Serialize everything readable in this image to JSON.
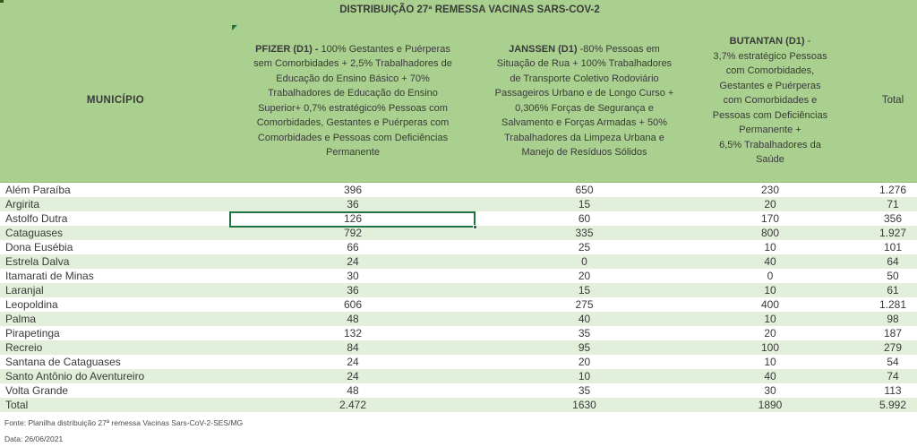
{
  "title": "DISTRIBUIÇÃO 27ª REMESSA VACINAS SARS-COV-2",
  "columns": {
    "municipio": {
      "label": "MUNICÍPIO"
    },
    "pfizer": {
      "bold": "PFIZER (D1) - ",
      "rest": "100% Gestantes e Puérperas\nsem Comorbidades + 2,5% Trabalhadores de\nEducação do Ensino Básico + 70%\nTrabalhadores de Educação do Ensino\nSuperior+ 0,7% estratégico% Pessoas com\nComorbidades, Gestantes e Puérperas com\nComorbidades e Pessoas com Deficiências\nPermanente"
    },
    "janssen": {
      "bold": "JANSSEN (D1)",
      "rest": " -80% Pessoas em\nSituação de Rua + 100% Trabalhadores\nde Transporte Coletivo Rodoviário\nPassageiros Urbano e de Longo Curso +\n0,306% Forças de Segurança e\nSalvamento e Forças Armadas + 50%\nTrabalhadores da Limpeza Urbana e\nManejo de Resíduos Sólidos"
    },
    "butantan": {
      "bold": "BUTANTAN (D1)",
      "rest": " -\n3,7% estratégico Pessoas\ncom Comorbidades,\nGestantes e Puérperas\ncom Comorbidades e\nPessoas com Deficiências\nPermanente +\n6,5% Trabalhadores da\nSaúde"
    },
    "total": {
      "label": "Total"
    }
  },
  "rows": [
    {
      "municipio": "Além Paraíba",
      "pfizer": "396",
      "janssen": "650",
      "butantan": "230",
      "total": "1.276"
    },
    {
      "municipio": "Argirita",
      "pfizer": "36",
      "janssen": "15",
      "butantan": "20",
      "total": "71"
    },
    {
      "municipio": "Astolfo Dutra",
      "pfizer": "126",
      "janssen": "60",
      "butantan": "170",
      "total": "356"
    },
    {
      "municipio": "Cataguases",
      "pfizer": "792",
      "janssen": "335",
      "butantan": "800",
      "total": "1.927"
    },
    {
      "municipio": "Dona Eusébia",
      "pfizer": "66",
      "janssen": "25",
      "butantan": "10",
      "total": "101"
    },
    {
      "municipio": "Estrela Dalva",
      "pfizer": "24",
      "janssen": "0",
      "butantan": "40",
      "total": "64"
    },
    {
      "municipio": "Itamarati de Minas",
      "pfizer": "30",
      "janssen": "20",
      "butantan": "0",
      "total": "50"
    },
    {
      "municipio": "Laranjal",
      "pfizer": "36",
      "janssen": "15",
      "butantan": "10",
      "total": "61"
    },
    {
      "municipio": "Leopoldina",
      "pfizer": "606",
      "janssen": "275",
      "butantan": "400",
      "total": "1.281"
    },
    {
      "municipio": "Palma",
      "pfizer": "48",
      "janssen": "40",
      "butantan": "10",
      "total": "98"
    },
    {
      "municipio": "Pirapetinga",
      "pfizer": "132",
      "janssen": "35",
      "butantan": "20",
      "total": "187"
    },
    {
      "municipio": "Recreio",
      "pfizer": "84",
      "janssen": "95",
      "butantan": "100",
      "total": "279"
    },
    {
      "municipio": "Santana de Cataguases",
      "pfizer": "24",
      "janssen": "20",
      "butantan": "10",
      "total": "54"
    },
    {
      "municipio": "Santo Antônio do Aventureiro",
      "pfizer": "24",
      "janssen": "10",
      "butantan": "40",
      "total": "74"
    },
    {
      "municipio": "Volta Grande",
      "pfizer": "48",
      "janssen": "35",
      "butantan": "30",
      "total": "113"
    }
  ],
  "total_row": {
    "municipio": "Total",
    "pfizer": "2.472",
    "janssen": "1630",
    "butantan": "1890",
    "total": "5.992"
  },
  "selection": {
    "municipio": "Astolfo Dutra",
    "column": "pfizer",
    "value": "126"
  },
  "footer": {
    "fonte": "Fonte: Planilha distribuição 27ª remessa Vacinas Sars-CoV-2-SES/MG",
    "data": "Data: 26/06/2021"
  },
  "colors": {
    "header_green": "#a9d08e",
    "stripe_green": "#e2efda",
    "selection_green": "#217346",
    "text_dark": "#3a3a3a"
  },
  "chart_data": {
    "type": "table",
    "title": "DISTRIBUIÇÃO 27ª REMESSA VACINAS SARS-COV-2",
    "categories": [
      "Além Paraíba",
      "Argirita",
      "Astolfo Dutra",
      "Cataguases",
      "Dona Eusébia",
      "Estrela Dalva",
      "Itamarati de Minas",
      "Laranjal",
      "Leopoldina",
      "Palma",
      "Pirapetinga",
      "Recreio",
      "Santana de Cataguases",
      "Santo Antônio do Aventureiro",
      "Volta Grande"
    ],
    "series": [
      {
        "name": "PFIZER (D1)",
        "values": [
          396,
          36,
          126,
          792,
          66,
          24,
          30,
          36,
          606,
          48,
          132,
          84,
          24,
          24,
          48
        ],
        "total": 2472
      },
      {
        "name": "JANSSEN (D1)",
        "values": [
          650,
          15,
          60,
          335,
          25,
          0,
          20,
          15,
          275,
          40,
          35,
          95,
          20,
          10,
          35
        ],
        "total": 1630
      },
      {
        "name": "BUTANTAN (D1)",
        "values": [
          230,
          20,
          170,
          800,
          10,
          40,
          0,
          10,
          400,
          10,
          20,
          100,
          10,
          40,
          30
        ],
        "total": 1890
      },
      {
        "name": "Total",
        "values": [
          1276,
          71,
          356,
          1927,
          101,
          64,
          50,
          61,
          1281,
          98,
          187,
          279,
          54,
          74,
          113
        ],
        "total": 5992
      }
    ]
  }
}
